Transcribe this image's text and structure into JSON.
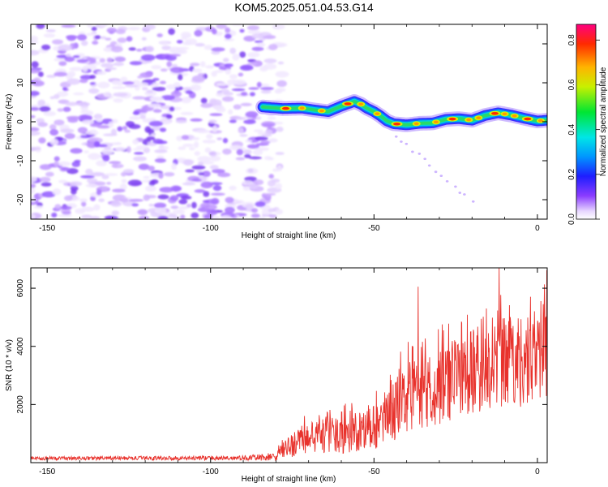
{
  "title": "KOM5.2025.051.04.53.G14",
  "chart_data": [
    {
      "type": "heatmap",
      "title": "KOM5.2025.051.04.53.G14",
      "xlabel": "Height of straight line (km)",
      "ylabel": "Frequency (Hz)",
      "xlim": [
        -155,
        3
      ],
      "ylim": [
        -25,
        25
      ],
      "xticks": [
        -150,
        -100,
        -50,
        0
      ],
      "yticks": [
        -20,
        -10,
        0,
        10,
        20
      ],
      "noise_region_x": [
        -155,
        -78
      ],
      "signal_start_x": -84,
      "ridge": {
        "x": [
          -84,
          -78,
          -72,
          -68,
          -64,
          -60,
          -56,
          -54,
          -52,
          -50,
          -48,
          -46,
          -44,
          -40,
          -36,
          -32,
          -28,
          -24,
          -20,
          -16,
          -12,
          -8,
          -4,
          0,
          3
        ],
        "freq_hz": [
          3.8,
          3.4,
          3.5,
          3.0,
          2.6,
          4.0,
          5.2,
          4.5,
          3.4,
          2.6,
          1.5,
          0.2,
          -0.5,
          -0.8,
          -0.4,
          -0.3,
          0.6,
          0.8,
          0.4,
          1.6,
          2.3,
          1.7,
          0.9,
          0.2,
          0.4
        ]
      },
      "colorbar": {
        "label": "Normalized spectral amplitude",
        "range": [
          0,
          0.87
        ],
        "ticks": [
          0.0,
          0.2,
          0.4,
          0.6,
          0.8
        ]
      },
      "grid": false
    },
    {
      "type": "line",
      "xlabel": "Height of straight line (km)",
      "ylabel": "SNR (10 * v/v)",
      "xlim": [
        -155,
        3
      ],
      "ylim": [
        0,
        6700
      ],
      "xticks": [
        -150,
        -100,
        -50,
        0
      ],
      "yticks": [
        2000,
        4000,
        6000
      ],
      "color": "#e8322c",
      "envelope": {
        "x": [
          -155,
          -90,
          -80,
          -74,
          -70,
          -66,
          -60,
          -54,
          -50,
          -46,
          -42,
          -38,
          -34,
          -30,
          -26,
          -22,
          -18,
          -14,
          -10,
          -6,
          -2,
          3
        ],
        "mean": [
          150,
          160,
          200,
          700,
          850,
          900,
          950,
          1050,
          1150,
          1500,
          2000,
          2300,
          2400,
          2600,
          2800,
          3000,
          3200,
          3300,
          3400,
          3500,
          3600,
          3800
        ],
        "spread": [
          60,
          80,
          150,
          500,
          550,
          600,
          650,
          700,
          750,
          900,
          1100,
          1200,
          1300,
          1300,
          1400,
          1400,
          1500,
          1500,
          1600,
          1600,
          1600,
          1700
        ]
      },
      "spikes": [
        {
          "x": -36.5,
          "y": 6050
        },
        {
          "x": -11.7,
          "y": 6700
        },
        {
          "x": -39.5,
          "y": 4150
        },
        {
          "x": -23.2,
          "y": 4850
        },
        {
          "x": -7.5,
          "y": 4700
        },
        {
          "x": 1.8,
          "y": 5450
        }
      ],
      "grid": false
    }
  ]
}
